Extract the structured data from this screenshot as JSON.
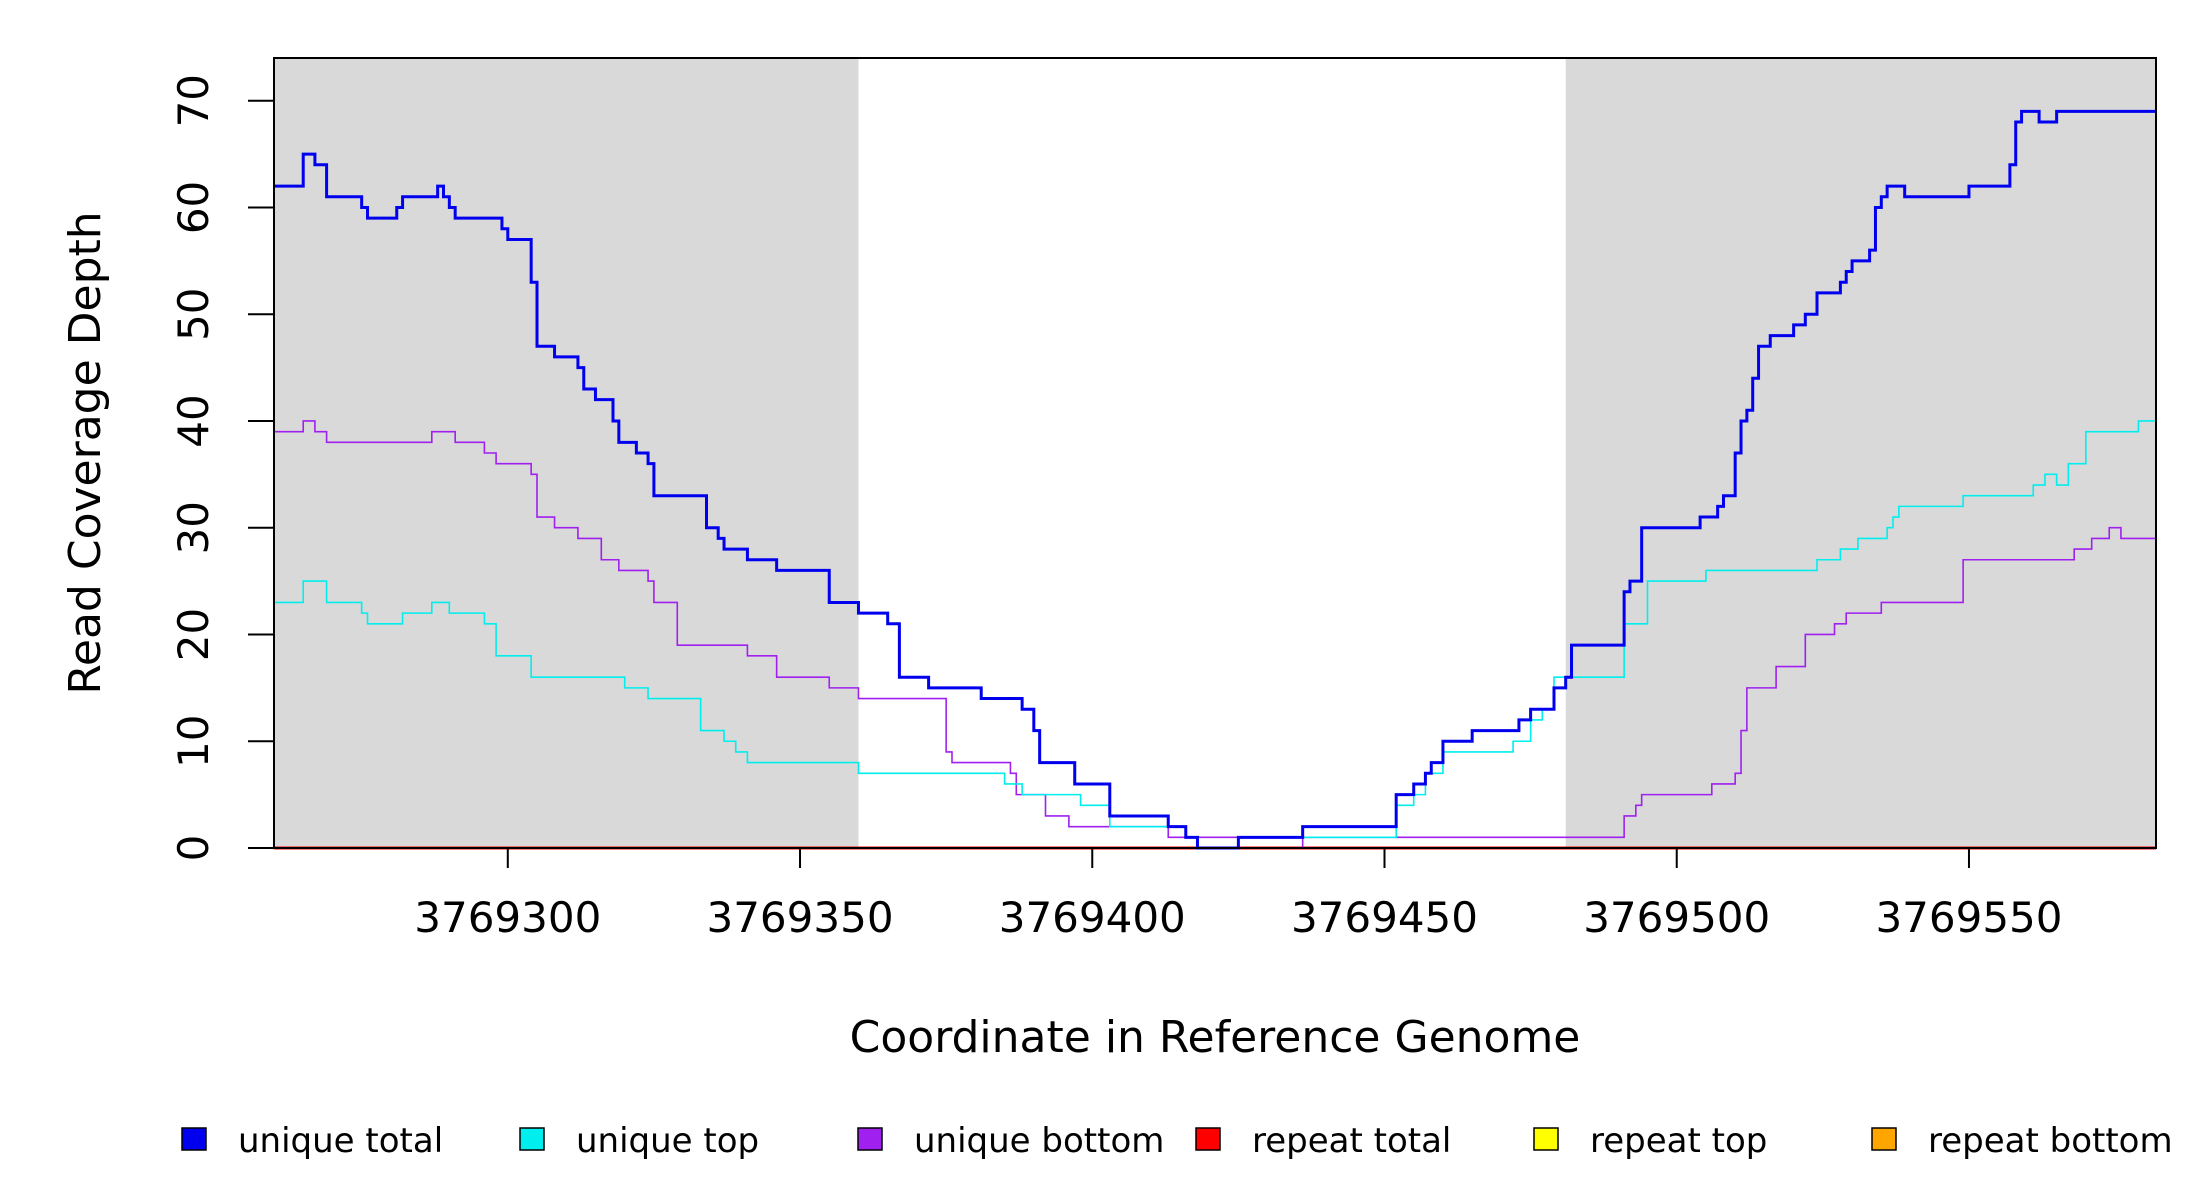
{
  "chart_data": {
    "type": "line",
    "title": "",
    "xlabel": "Coordinate in Reference Genome",
    "ylabel": "Read Coverage Depth",
    "xlim": [
      3769260,
      3769582
    ],
    "ylim": [
      0,
      74
    ],
    "x_ticks": [
      3769300,
      3769350,
      3769400,
      3769450,
      3769500,
      3769550
    ],
    "y_ticks": [
      0,
      10,
      20,
      30,
      40,
      50,
      60,
      70
    ],
    "shaded_regions": [
      [
        3769260,
        3769360
      ],
      [
        3769481,
        3769582
      ]
    ],
    "step": true,
    "series": [
      {
        "name": "unique total",
        "color": "#0000ee",
        "x": [
          3769260,
          3769265,
          3769267,
          3769269,
          3769275,
          3769276,
          3769279,
          3769281,
          3769282,
          3769287,
          3769288,
          3769289,
          3769290,
          3769291,
          3769299,
          3769300,
          3769304,
          3769305,
          3769308,
          3769312,
          3769313,
          3769315,
          3769318,
          3769319,
          3769322,
          3769324,
          3769325,
          3769334,
          3769336,
          3769337,
          3769341,
          3769346,
          3769355,
          3769360,
          3769365,
          3769367,
          3769372,
          3769378,
          3769381,
          3769385,
          3769387,
          3769388,
          3769390,
          3769391,
          3769397,
          3769403,
          3769404,
          3769413,
          3769416,
          3769418,
          3769425,
          3769436,
          3769452,
          3769455,
          3769457,
          3769458,
          3769460,
          3769464,
          3769465,
          3769470,
          3769472,
          3769473,
          3769475,
          3769479,
          3769481,
          3769482,
          3769491,
          3769492,
          3769494,
          3769504,
          3769507,
          3769508,
          3769510,
          3769511,
          3769512,
          3769513,
          3769514,
          3769516,
          3769520,
          3769522,
          3769524,
          3769528,
          3769529,
          3769530,
          3769533,
          3769534,
          3769535,
          3769536,
          3769539,
          3769550,
          3769557,
          3769558,
          3769559,
          3769562,
          3769563,
          3769565,
          3769568,
          3769569,
          3769571
        ],
        "y": [
          62,
          65,
          64,
          61,
          60,
          59,
          59,
          60,
          61,
          61,
          62,
          61,
          60,
          59,
          58,
          57,
          53,
          47,
          46,
          45,
          43,
          42,
          40,
          38,
          37,
          36,
          33,
          30,
          29,
          28,
          27,
          26,
          23,
          22,
          21,
          16,
          15,
          15,
          14,
          14,
          14,
          13,
          11,
          8,
          6,
          3,
          3,
          2,
          1,
          0,
          1,
          2,
          5,
          6,
          7,
          8,
          10,
          10,
          11,
          11,
          11,
          12,
          13,
          15,
          16,
          19,
          24,
          25,
          30,
          31,
          32,
          33,
          37,
          40,
          41,
          44,
          47,
          48,
          49,
          50,
          52,
          53,
          54,
          55,
          56,
          60,
          61,
          62,
          61,
          62,
          64,
          68,
          69,
          68,
          68,
          69,
          69,
          69,
          69
        ]
      },
      {
        "name": "unique top",
        "color": "#00eeee",
        "x": [
          3769260,
          3769265,
          3769269,
          3769275,
          3769276,
          3769282,
          3769287,
          3769290,
          3769296,
          3769298,
          3769304,
          3769310,
          3769320,
          3769324,
          3769328,
          3769333,
          3769335,
          3769337,
          3769339,
          3769341,
          3769360,
          3769365,
          3769385,
          3769388,
          3769398,
          3769403,
          3769409,
          3769416,
          3769418,
          3769425,
          3769436,
          3769450,
          3769452,
          3769455,
          3769457,
          3769460,
          3769464,
          3769472,
          3769475,
          3769477,
          3769479,
          3769482,
          3769491,
          3769495,
          3769499,
          3769505,
          3769515,
          3769524,
          3769528,
          3769531,
          3769536,
          3769537,
          3769538,
          3769549,
          3769561,
          3769563,
          3769565,
          3769567,
          3769570,
          3769579
        ],
        "y": [
          23,
          25,
          23,
          22,
          21,
          22,
          23,
          22,
          21,
          18,
          16,
          16,
          15,
          14,
          14,
          11,
          11,
          10,
          9,
          8,
          7,
          7,
          6,
          5,
          4,
          2,
          2,
          1,
          0,
          1,
          1,
          1,
          4,
          5,
          7,
          9,
          9,
          10,
          12,
          13,
          16,
          16,
          21,
          25,
          25,
          26,
          26,
          27,
          28,
          29,
          30,
          31,
          32,
          33,
          34,
          35,
          34,
          36,
          39,
          40
        ]
      },
      {
        "name": "unique bottom",
        "color": "#a020f0",
        "x": [
          3769260,
          3769265,
          3769267,
          3769269,
          3769282,
          3769287,
          3769291,
          3769296,
          3769298,
          3769304,
          3769305,
          3769308,
          3769310,
          3769312,
          3769313,
          3769316,
          3769319,
          3769324,
          3769325,
          3769329,
          3769341,
          3769346,
          3769355,
          3769360,
          3769375,
          3769376,
          3769386,
          3769387,
          3769392,
          3769396,
          3769413,
          3769418,
          3769425,
          3769436,
          3769450,
          3769476,
          3769491,
          3769493,
          3769494,
          3769506,
          3769510,
          3769511,
          3769512,
          3769517,
          3769522,
          3769527,
          3769529,
          3769531,
          3769535,
          3769538,
          3769549,
          3769566,
          3769568,
          3769571,
          3769574,
          3769576
        ],
        "y": [
          39,
          40,
          39,
          38,
          38,
          39,
          38,
          37,
          36,
          35,
          31,
          30,
          30,
          29,
          29,
          27,
          26,
          25,
          23,
          19,
          18,
          16,
          15,
          14,
          9,
          8,
          7,
          5,
          3,
          2,
          1,
          1,
          0,
          1,
          1,
          1,
          3,
          4,
          5,
          6,
          7,
          11,
          15,
          17,
          20,
          21,
          22,
          22,
          23,
          23,
          27,
          27,
          28,
          29,
          30,
          29
        ]
      },
      {
        "name": "repeat total",
        "color": "#ff0000",
        "x": [
          3769260,
          3769582
        ],
        "y": [
          0,
          0
        ]
      },
      {
        "name": "repeat top",
        "color": "#ffff00",
        "x": [
          3769260,
          3769582
        ],
        "y": [
          0,
          0
        ]
      },
      {
        "name": "repeat bottom",
        "color": "#ffa500",
        "x": [
          3769260,
          3769582
        ],
        "y": [
          0,
          0
        ]
      }
    ],
    "legend": {
      "position": "bottom",
      "entries": [
        "unique total",
        "unique top",
        "unique bottom",
        "repeat total",
        "repeat top",
        "repeat bottom"
      ]
    }
  }
}
